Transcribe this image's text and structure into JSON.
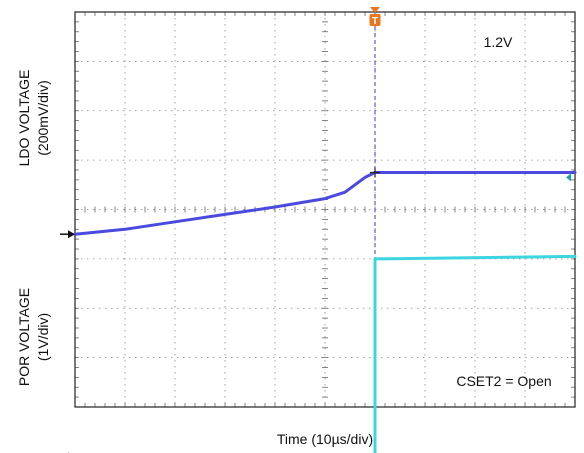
{
  "chart_data": {
    "type": "line",
    "xlabel": "Time (10µs/div)",
    "x_divisions": 10,
    "y_divisions": 8,
    "series": [
      {
        "name": "LDO VOLTAGE",
        "ylabel": "LDO VOLTAGE",
        "ylabel_scale": "(200mV/div)",
        "color": "#4a4adf",
        "x": [
          0,
          1,
          2,
          3,
          4,
          5,
          5.4,
          5.6,
          5.8,
          6.0,
          6.5,
          7,
          8,
          9,
          10
        ],
        "y": [
          -0.5,
          -0.4,
          -0.25,
          -0.1,
          0.05,
          0.22,
          0.35,
          0.5,
          0.65,
          0.75,
          0.75,
          0.75,
          0.75,
          0.75,
          0.75
        ],
        "end_label": "1.2V"
      },
      {
        "name": "POR VOLTAGE",
        "ylabel": "POR VOLTAGE",
        "ylabel_scale": "(1V/div)",
        "color": "#3cd6e0",
        "x": [
          0,
          5.95,
          6.0,
          6.0,
          10
        ],
        "y": [
          -5.0,
          -5.0,
          -5.0,
          -1.0,
          -0.95
        ]
      }
    ],
    "trigger": {
      "x": 6.0,
      "label": "T",
      "color": "#e8771e"
    },
    "annotation": "CSET2 = Open",
    "grid": true
  }
}
